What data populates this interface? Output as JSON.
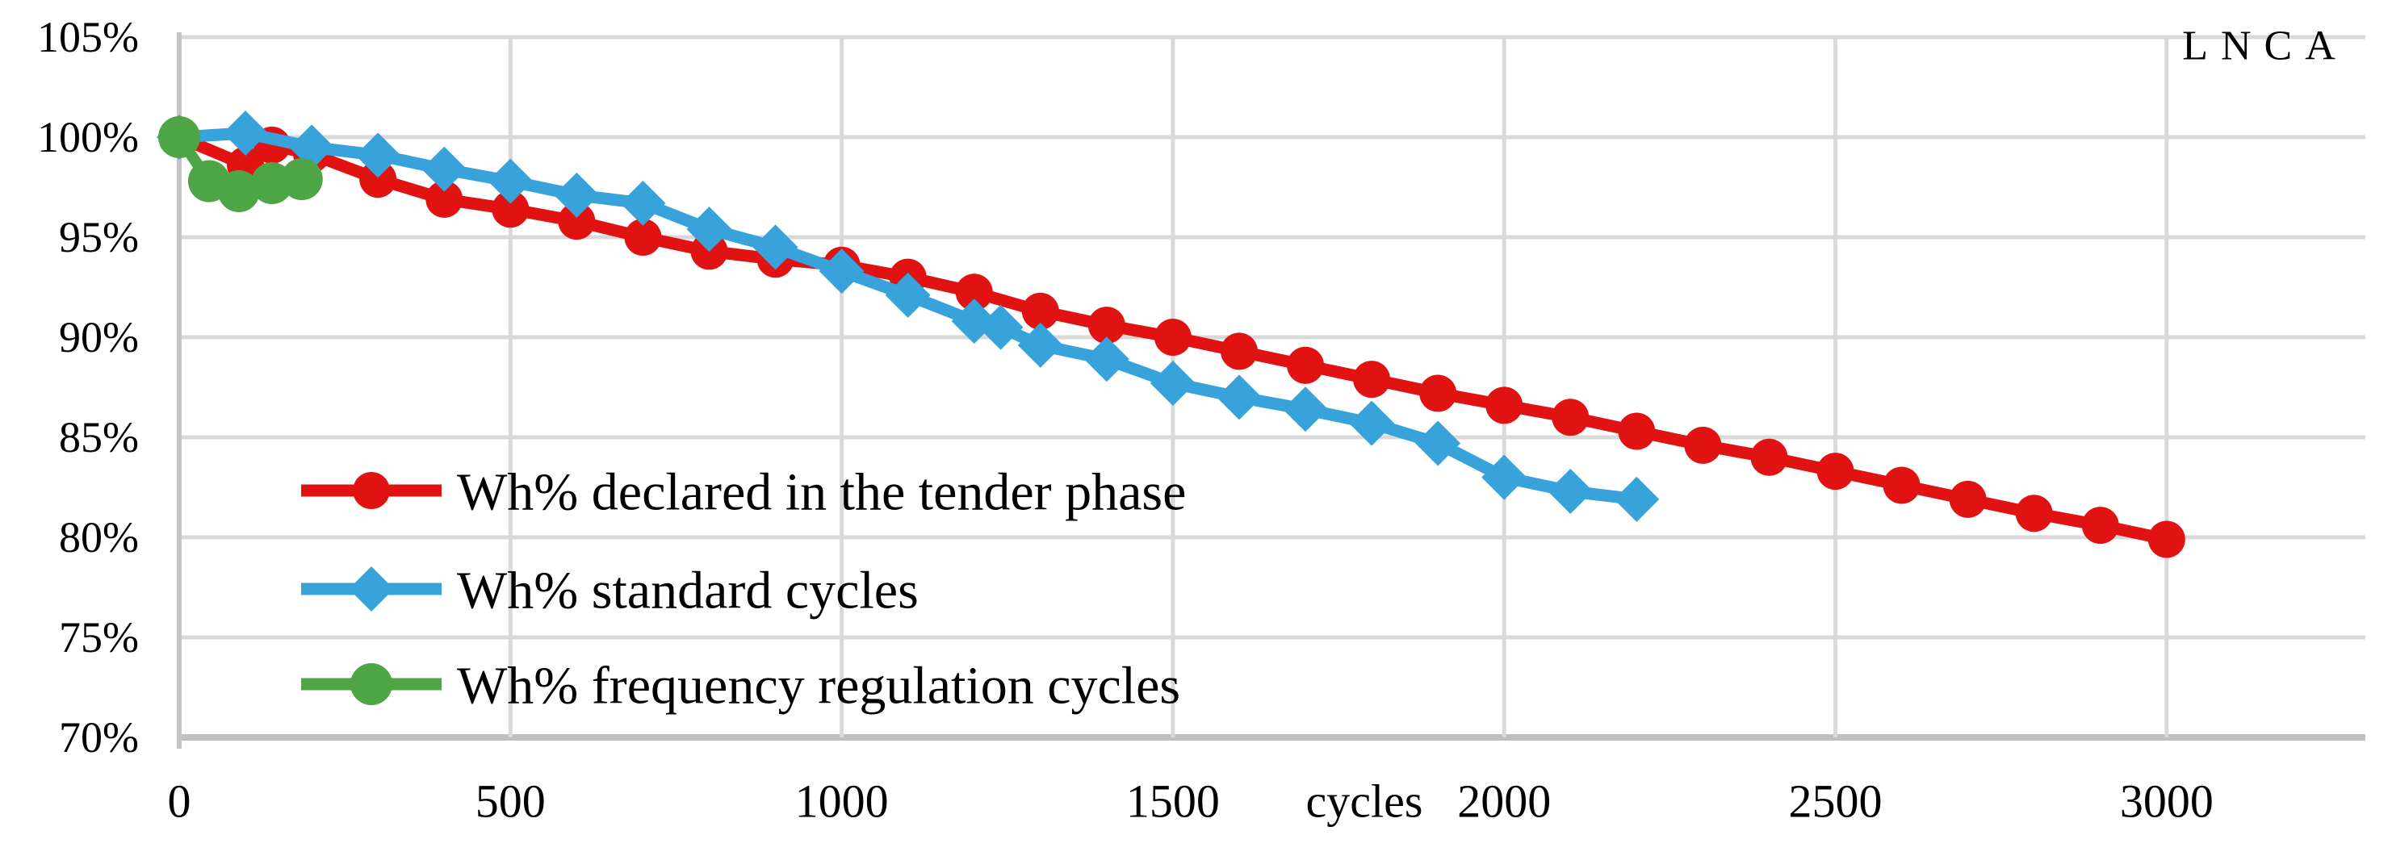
{
  "chart_data": {
    "type": "line",
    "annotation": "LNCA",
    "xlabel": "cycles",
    "xlim": [
      0,
      3300
    ],
    "ylim": [
      70,
      105
    ],
    "grid": true,
    "legend_position": "inside-bottom-left",
    "x_ticks": [
      {
        "value": 0,
        "label": "0"
      },
      {
        "value": 500,
        "label": "500"
      },
      {
        "value": 1000,
        "label": "1000"
      },
      {
        "value": 1500,
        "label": "1500"
      },
      {
        "value": 2000,
        "label": "2000"
      },
      {
        "value": 2500,
        "label": "2500"
      },
      {
        "value": 3000,
        "label": "3000"
      }
    ],
    "y_ticks": [
      {
        "value": 105,
        "label": "105%"
      },
      {
        "value": 100,
        "label": "100%"
      },
      {
        "value": 95,
        "label": "95%"
      },
      {
        "value": 90,
        "label": "90%"
      },
      {
        "value": 85,
        "label": "85%"
      },
      {
        "value": 80,
        "label": "80%"
      },
      {
        "value": 75,
        "label": "75%"
      },
      {
        "value": 70,
        "label": "70%"
      }
    ],
    "colors": {
      "gridline": "#d9d9d9",
      "axis_line": "#bfbfbf",
      "text": "#000000",
      "background": "#ffffff"
    },
    "series": [
      {
        "id": "declared",
        "name": "Wh% declared in the tender phase",
        "color": "#e01212",
        "marker": "circle",
        "marker_size": 23,
        "line_width": 15,
        "points": [
          [
            0,
            100
          ],
          [
            100,
            98.6
          ],
          [
            140,
            99.6
          ],
          [
            200,
            99.15
          ],
          [
            300,
            97.9
          ],
          [
            400,
            96.9
          ],
          [
            500,
            96.4
          ],
          [
            600,
            95.8
          ],
          [
            700,
            95.0
          ],
          [
            800,
            94.3
          ],
          [
            900,
            93.9
          ],
          [
            1000,
            93.6
          ],
          [
            1100,
            93.0
          ],
          [
            1200,
            92.25
          ],
          [
            1300,
            91.3
          ],
          [
            1400,
            90.6
          ],
          [
            1500,
            90.0
          ],
          [
            1600,
            89.3
          ],
          [
            1700,
            88.6
          ],
          [
            1800,
            87.9
          ],
          [
            1900,
            87.2
          ],
          [
            2000,
            86.6
          ],
          [
            2100,
            86.0
          ],
          [
            2200,
            85.3
          ],
          [
            2300,
            84.6
          ],
          [
            2400,
            84.0
          ],
          [
            2500,
            83.3
          ],
          [
            2600,
            82.6
          ],
          [
            2700,
            81.9
          ],
          [
            2800,
            81.2
          ],
          [
            2900,
            80.6
          ],
          [
            3000,
            79.9
          ]
        ]
      },
      {
        "id": "standard",
        "name": "Wh% standard cycles",
        "color": "#38a2db",
        "marker": "diamond",
        "marker_size": 28,
        "line_width": 15,
        "points": [
          [
            0,
            100
          ],
          [
            100,
            100.2
          ],
          [
            200,
            99.5
          ],
          [
            300,
            99.1
          ],
          [
            400,
            98.4
          ],
          [
            500,
            97.8
          ],
          [
            600,
            97.1
          ],
          [
            700,
            96.7
          ],
          [
            800,
            95.4
          ],
          [
            900,
            94.5
          ],
          [
            1000,
            93.3
          ],
          [
            1100,
            92.1
          ],
          [
            1200,
            90.8
          ],
          [
            1240,
            90.5
          ],
          [
            1300,
            89.6
          ],
          [
            1400,
            88.9
          ],
          [
            1500,
            87.7
          ],
          [
            1600,
            87.0
          ],
          [
            1700,
            86.4
          ],
          [
            1800,
            85.7
          ],
          [
            1900,
            84.7
          ],
          [
            2000,
            83.0
          ],
          [
            2100,
            82.3
          ],
          [
            2200,
            81.9
          ]
        ]
      },
      {
        "id": "frequency",
        "name": "Wh% frequency regulation cycles",
        "color": "#4ea546",
        "marker": "circle",
        "marker_size": 26,
        "line_width": 14,
        "points": [
          [
            0,
            100
          ],
          [
            45,
            97.8
          ],
          [
            90,
            97.3
          ],
          [
            140,
            97.7
          ],
          [
            185,
            97.9
          ]
        ]
      }
    ]
  }
}
